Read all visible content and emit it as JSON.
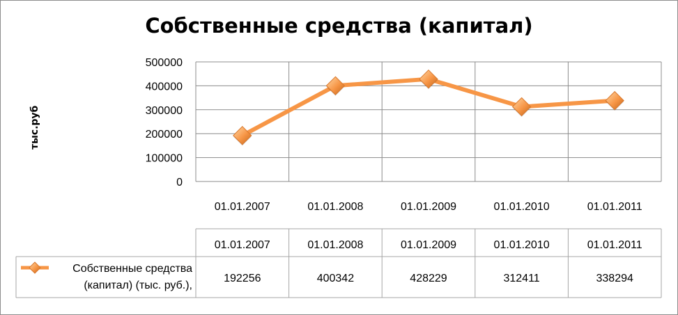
{
  "chart_data": {
    "type": "line",
    "title": "Собственные средства (капитал)",
    "ylabel": "тыс.руб",
    "xlabel": "",
    "categories": [
      "01.01.2007",
      "01.01.2008",
      "01.01.2009",
      "01.01.2010",
      "01.01.2011"
    ],
    "yticks": [
      "0",
      "100000",
      "200000",
      "300000",
      "400000",
      "500000"
    ],
    "ylim": [
      0,
      500000
    ],
    "grid": true,
    "series": [
      {
        "name": "Собственные средства (капитал) (тыс. руб.),",
        "name_lines": [
          "Собственные средства",
          "(капитал) (тыс. руб.),"
        ],
        "values": [
          192256,
          400342,
          428229,
          312411,
          338294
        ],
        "color": "#f79646",
        "marker": "diamond"
      }
    ],
    "data_table": {
      "header": [
        "01.01.2007",
        "01.01.2008",
        "01.01.2009",
        "01.01.2010",
        "01.01.2011"
      ],
      "rows": [
        [
          "192256",
          "400342",
          "428229",
          "312411",
          "338294"
        ]
      ]
    }
  }
}
